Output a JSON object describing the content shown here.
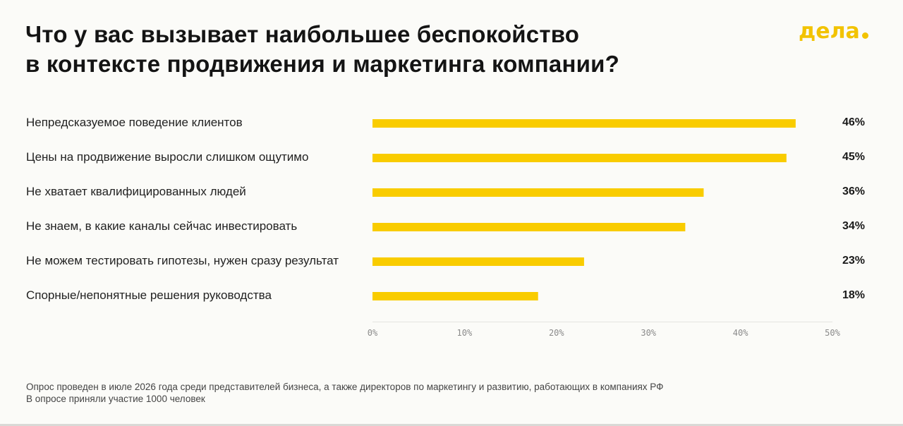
{
  "header": {
    "title_line1": "Что у вас вызывает наибольшее беспокойство",
    "title_line2": "в контексте продвижения и маркетинга компании?",
    "logo_text": "дела",
    "logo_color": "#f2c300"
  },
  "chart_data": {
    "type": "bar",
    "orientation": "horizontal",
    "categories": [
      "Непредсказуемое поведение клиентов",
      "Цены на продвижение выросли слишком ощутимо",
      "Не хватает квалифицированных людей",
      "Не знаем, в какие каналы сейчас инвестировать",
      "Не можем тестировать гипотезы, нужен сразу результат",
      "Спорные/непонятные решения руководства"
    ],
    "values": [
      46,
      45,
      36,
      34,
      23,
      18
    ],
    "value_labels": [
      "46%",
      "45%",
      "36%",
      "34%",
      "23%",
      "18%"
    ],
    "xlim": [
      0,
      50
    ],
    "x_ticks": [
      "0%",
      "10%",
      "20%",
      "30%",
      "40%",
      "50%"
    ],
    "bar_color": "#f9cc00",
    "grid": false
  },
  "footnote": {
    "line1": "Опрос проведен в июле 2026 года среди представителей бизнеса, а также директоров по маркетингу и развитию, работающих в компаниях РФ",
    "line2": "В опросе приняли участие 1000 человек"
  }
}
